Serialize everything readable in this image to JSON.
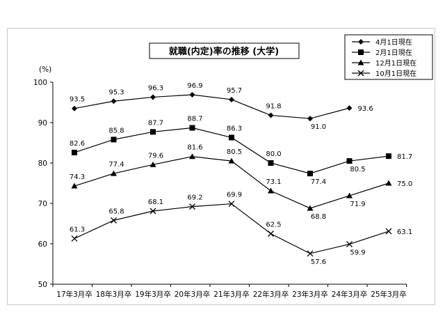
{
  "chart_data": {
    "type": "line",
    "title": "就職(内定)率の推移 (大学)",
    "ylabel": "(%)",
    "ylim": [
      50,
      100
    ],
    "yticks": [
      50,
      60,
      70,
      80,
      90,
      100
    ],
    "categories": [
      "17年3月卒",
      "18年3月卒",
      "19年3月卒",
      "20年3月卒",
      "21年3月卒",
      "22年3月卒",
      "23年3月卒",
      "24年3月卒",
      "25年3月卒"
    ],
    "grid": false,
    "legend_position": "top-right",
    "series": [
      {
        "name": "4月1日現在",
        "marker": "diamond",
        "values": [
          93.5,
          95.3,
          96.3,
          96.9,
          95.7,
          91.8,
          91.0,
          93.6,
          null
        ]
      },
      {
        "name": "2月1日現在",
        "marker": "square",
        "values": [
          82.6,
          85.8,
          87.7,
          88.7,
          86.3,
          80.0,
          77.4,
          80.5,
          81.7
        ]
      },
      {
        "name": "12月1日現在",
        "marker": "triangle",
        "values": [
          74.3,
          77.4,
          79.6,
          81.6,
          80.5,
          73.1,
          68.8,
          71.9,
          75.0
        ]
      },
      {
        "name": "10月1日現在",
        "marker": "x",
        "values": [
          61.3,
          65.8,
          68.1,
          69.2,
          69.9,
          62.5,
          57.6,
          59.9,
          63.1
        ]
      }
    ]
  }
}
